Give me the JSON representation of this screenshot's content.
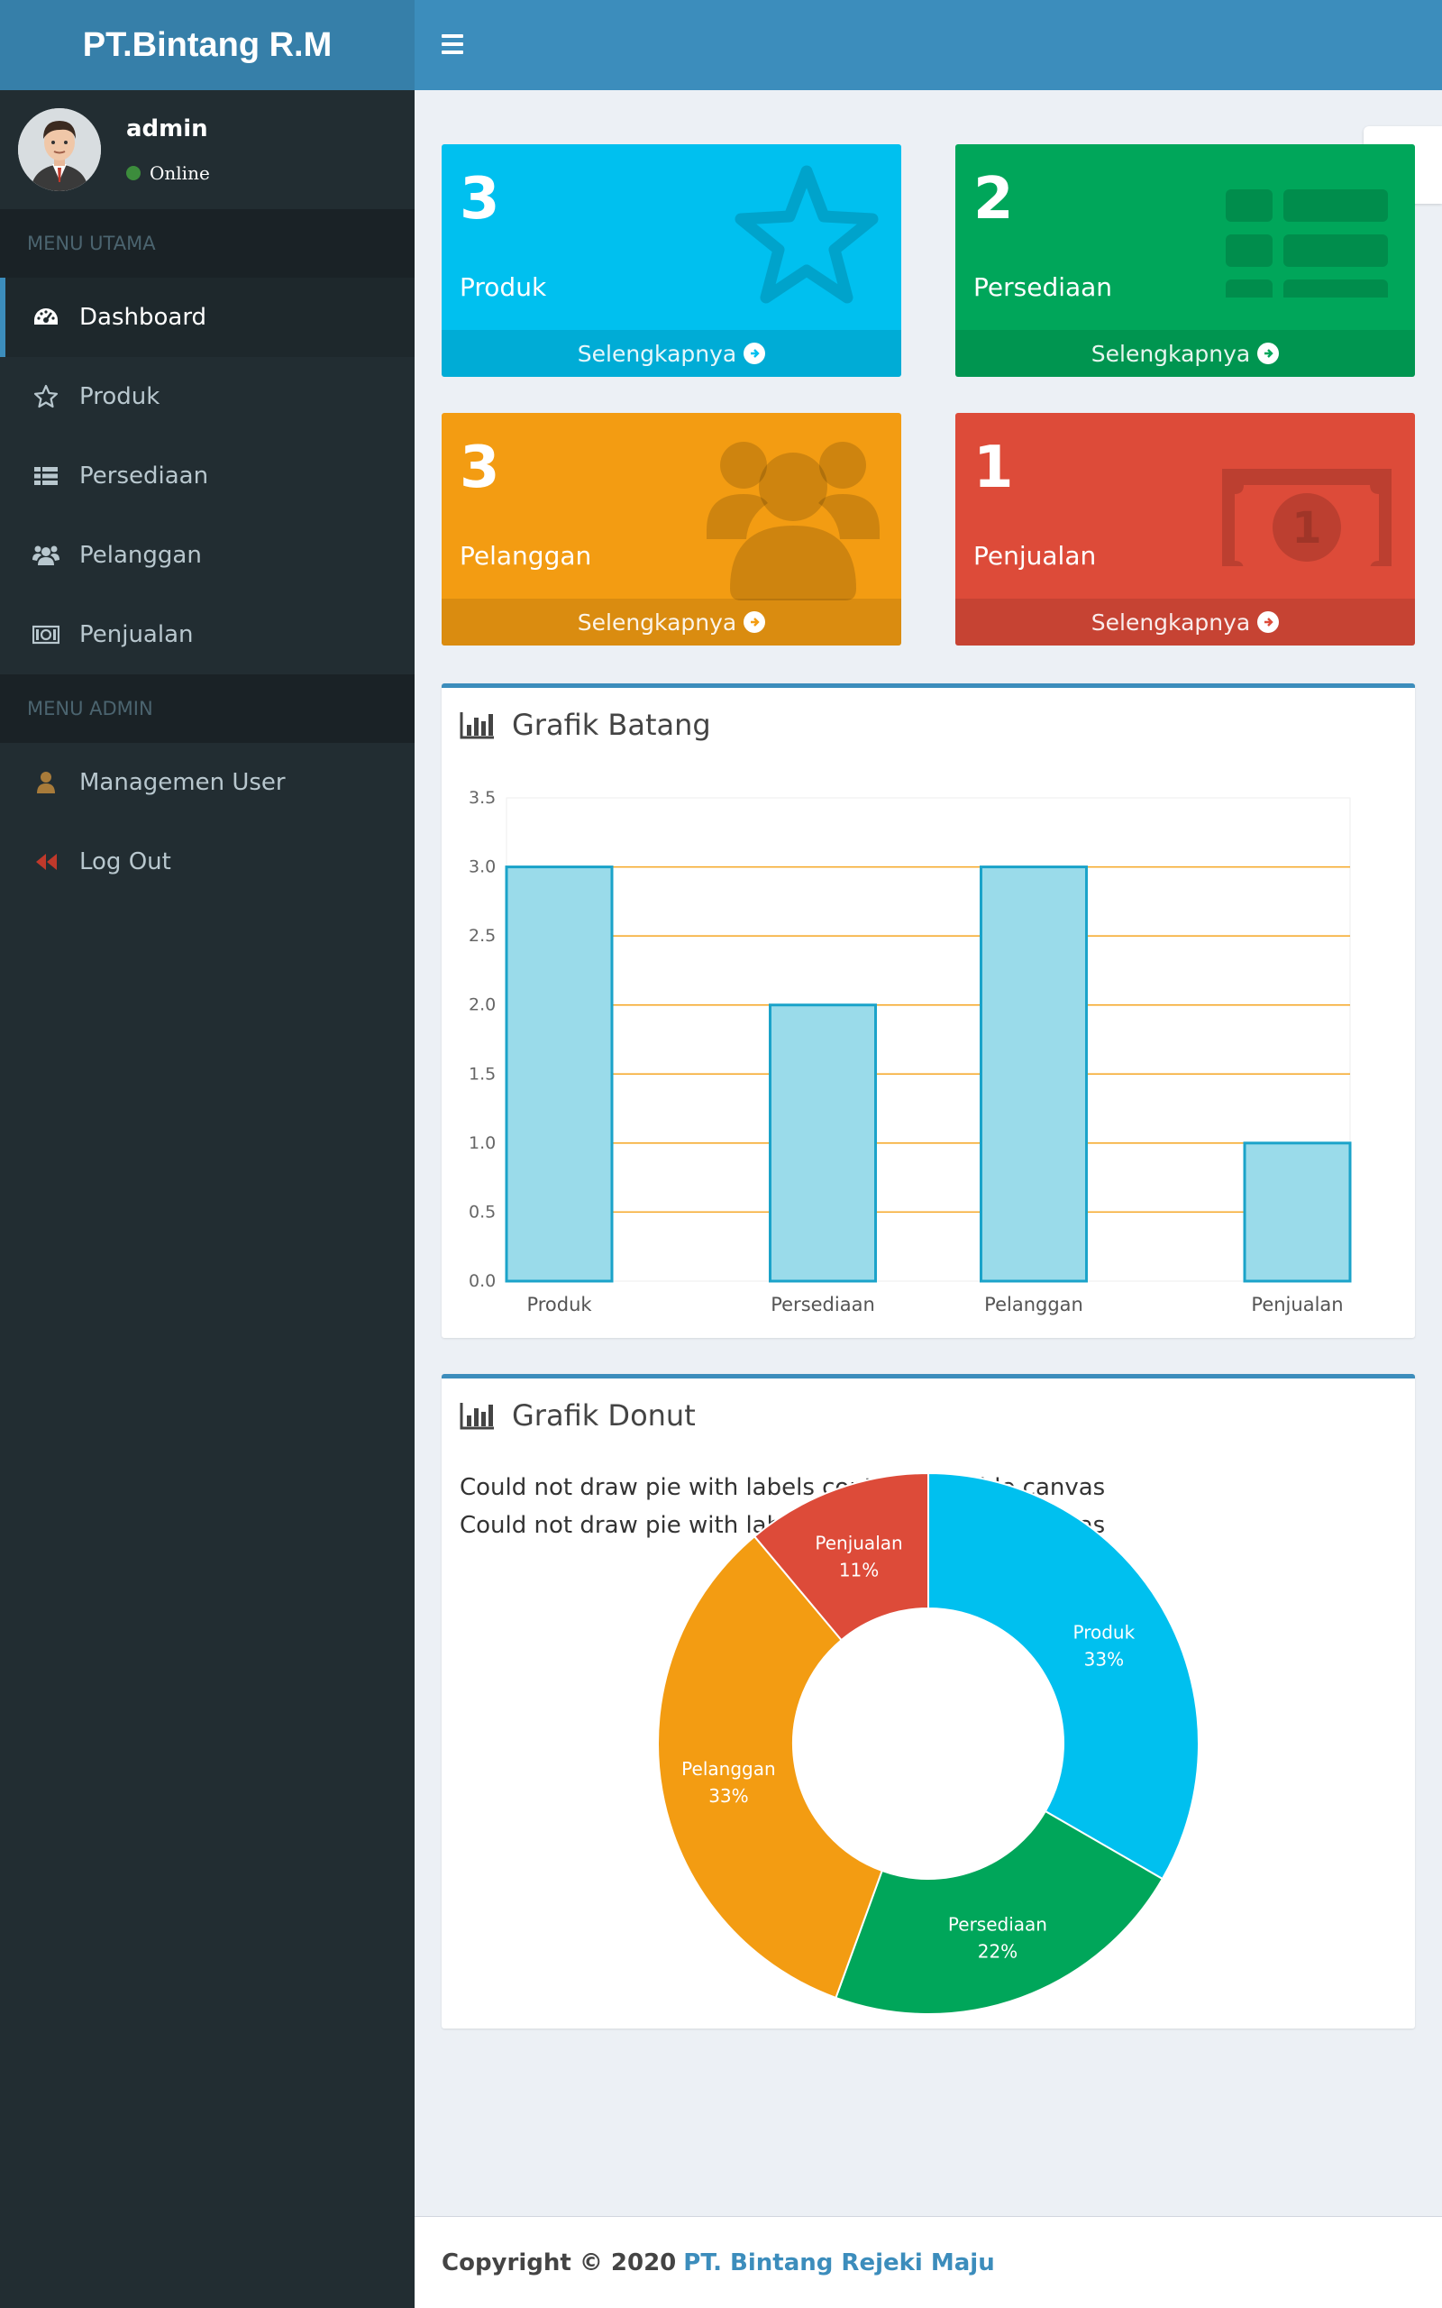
{
  "app": {
    "title": "PT.Bintang R.M"
  },
  "user": {
    "name": "admin",
    "status": "Online"
  },
  "sidebar": {
    "header_main": "MENU UTAMA",
    "main_items": [
      {
        "label": "Dashboard",
        "icon": "dashboard-icon"
      },
      {
        "label": "Produk",
        "icon": "star-icon"
      },
      {
        "label": "Persediaan",
        "icon": "list-icon"
      },
      {
        "label": "Pelanggan",
        "icon": "users-icon"
      },
      {
        "label": "Penjualan",
        "icon": "money-icon"
      }
    ],
    "header_admin": "MENU ADMIN",
    "admin_items": [
      {
        "label": "Managemen User",
        "icon": "user-icon"
      },
      {
        "label": "Log Out",
        "icon": "backward-icon"
      }
    ]
  },
  "boxes": [
    {
      "value": "3",
      "label": "Produk",
      "more": "Selengkapnya",
      "color": "#00c0ef",
      "icon": "star-icon"
    },
    {
      "value": "2",
      "label": "Persediaan",
      "more": "Selengkapnya",
      "color": "#00a65a",
      "icon": "list-icon"
    },
    {
      "value": "3",
      "label": "Pelanggan",
      "more": "Selengkapnya",
      "color": "#f39c12",
      "icon": "users-icon"
    },
    {
      "value": "1",
      "label": "Penjualan",
      "more": "Selengkapnya",
      "color": "#dd4b39",
      "icon": "money-icon"
    }
  ],
  "bar_panel": {
    "title": "Grafik Batang"
  },
  "donut_panel": {
    "title": "Grafik Donut",
    "errors": [
      "Could not draw pie with labels contained inside canvas",
      "Could not draw pie with labels contained inside canvas"
    ]
  },
  "chart_data": [
    {
      "type": "bar",
      "categories": [
        "Produk",
        "Persediaan",
        "Pelanggan",
        "Penjualan"
      ],
      "values": [
        3,
        2,
        3,
        1
      ],
      "ylim": [
        0,
        3.5
      ],
      "yticks": [
        "0.0",
        "0.5",
        "1.0",
        "1.5",
        "2.0",
        "2.5",
        "3.0",
        "3.5"
      ],
      "bar_color": "#9adbea",
      "bar_border": "#1ba3c9",
      "grid_color": "#f5a623",
      "grid": true
    },
    {
      "type": "pie",
      "donut": true,
      "categories": [
        "Produk",
        "Persediaan",
        "Pelanggan",
        "Penjualan"
      ],
      "values": [
        3,
        2,
        3,
        1
      ],
      "percent_labels": [
        "33%",
        "22%",
        "33%",
        "11%"
      ],
      "colors": [
        "#00c0ef",
        "#00a65a",
        "#f39c12",
        "#dd4b39"
      ]
    }
  ],
  "footer": {
    "prefix": "Copyright © 2020",
    "brand": "PT. Bintang Rejeki Maju"
  }
}
